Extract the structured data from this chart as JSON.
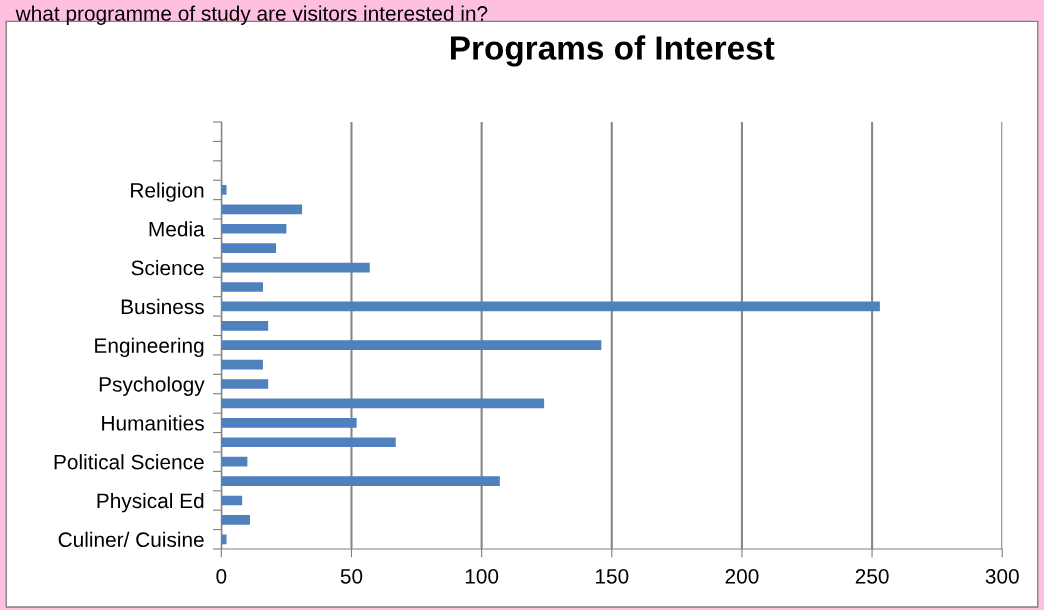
{
  "chart_data": {
    "type": "bar",
    "orientation": "horizontal",
    "title": "Programs of Interest",
    "annotations": [
      "what programme of study are visitors interested in?"
    ],
    "categories": [
      null,
      null,
      null,
      "Religion",
      null,
      "Media",
      null,
      "Science",
      null,
      "Business",
      null,
      "Engineering",
      null,
      "Psychology",
      null,
      "Humanities",
      null,
      "Political Science",
      null,
      "Physical Ed",
      null,
      "Culiner/ Cuisine"
    ],
    "values": [
      null,
      null,
      null,
      2,
      31,
      25,
      21,
      57,
      16,
      253,
      18,
      146,
      16,
      18,
      124,
      52,
      67,
      10,
      107,
      8,
      11,
      2
    ],
    "color": "#4f81bd",
    "xlim": [
      0,
      300
    ],
    "xticks": [
      0,
      50,
      100,
      150,
      200,
      250,
      300
    ],
    "grid": "x"
  }
}
